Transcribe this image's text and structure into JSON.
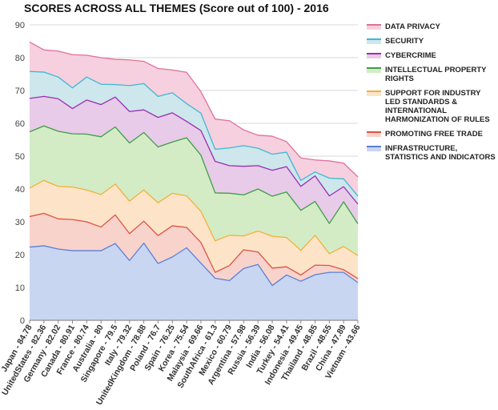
{
  "chart_data": {
    "type": "area",
    "stacked": true,
    "title": "SCORES ACROSS ALL THEMES (Score out of 100) - 2016",
    "ylim": [
      0,
      90
    ],
    "yticks": [
      0,
      10,
      20,
      30,
      40,
      50,
      60,
      70,
      80,
      90
    ],
    "grid": true,
    "legend_position": "right",
    "categories": [
      "Japan - 84.78",
      "UnitedStates - 82.36",
      "Germany - 82.02",
      "Canada - 80.91",
      "France - 80.74",
      "Australia - 80",
      "Singapore - 79.5",
      "Italy - 79.32",
      "UnitedKingdom - 78.88",
      "Poland - 76.7",
      "Spain - 76.25",
      "Korea - 75.54",
      "Malaysia - 69.66",
      "SouthAfrica - 61.3",
      "Mexico - 60.79",
      "Argentina - 57.98",
      "Russia - 56.39",
      "India - 56.08",
      "Turkey - 54.41",
      "Indonesia - 49.45",
      "Thailand - 48.85",
      "Brazil - 48.55",
      "China - 47.89",
      "Vietnam - 43.66"
    ],
    "series": [
      {
        "name": "INFRASTRUCTURE, STATISTICS AND INDICATORS",
        "color": "#5b7fd6",
        "fill": "#c9d6f2",
        "cumulative": [
          22.3,
          22.7,
          21.7,
          21.2,
          21.2,
          21.2,
          23.4,
          18.2,
          23.5,
          17.3,
          19.3,
          22.1,
          17.4,
          12.8,
          12.1,
          15.8,
          17.0,
          10.6,
          13.8,
          11.9,
          13.9,
          14.6,
          14.6,
          11.5
        ]
      },
      {
        "name": "PROMOTING FREE TRADE",
        "color": "#e0523f",
        "fill": "#f8d3cc",
        "cumulative": [
          31.6,
          32.6,
          30.9,
          30.7,
          30.0,
          28.4,
          32.1,
          26.4,
          30.2,
          25.8,
          28.8,
          28.3,
          23.7,
          14.6,
          16.7,
          21.5,
          20.8,
          15.9,
          16.3,
          13.8,
          16.8,
          16.7,
          15.4,
          12.7
        ]
      },
      {
        "name": "SUPPORT FOR INDUSTRY LED STANDARDS & INTERNATIONAL HARMONIZATION OF RULES",
        "color": "#f0b13c",
        "fill": "#fde4c8",
        "cumulative": [
          40.3,
          42.6,
          40.8,
          40.6,
          39.7,
          38.3,
          41.5,
          36.3,
          39.7,
          35.8,
          38.7,
          37.9,
          33.2,
          24.2,
          25.9,
          25.7,
          27.2,
          25.6,
          25.2,
          21.3,
          25.9,
          20.3,
          22.5,
          19.7
        ]
      },
      {
        "name": "INTELLECTUAL PROPERTY RIGHTS",
        "color": "#3e9e45",
        "fill": "#d3ecc6",
        "cumulative": [
          57.4,
          59.2,
          57.6,
          56.8,
          56.7,
          55.9,
          58.9,
          54.0,
          57.2,
          52.8,
          54.3,
          55.6,
          50.3,
          38.8,
          38.7,
          38.2,
          40.0,
          37.8,
          39.1,
          33.5,
          36.2,
          29.5,
          36.1,
          29.4
        ]
      },
      {
        "name": "CYBERCRIME",
        "color": "#9a2fb0",
        "fill": "#e7cbe8",
        "cumulative": [
          67.6,
          68.2,
          67.5,
          64.5,
          67.1,
          65.7,
          68.0,
          63.6,
          64.1,
          61.8,
          63.2,
          60.6,
          57.8,
          48.4,
          47.1,
          46.9,
          47.1,
          45.7,
          46.8,
          40.8,
          44.0,
          37.9,
          40.7,
          35.4
        ]
      },
      {
        "name": "SECURITY",
        "color": "#3fb7d4",
        "fill": "#cde7ec",
        "cumulative": [
          75.8,
          75.6,
          74.1,
          70.8,
          74.1,
          71.9,
          71.8,
          71.5,
          72.1,
          68.2,
          69.3,
          66.0,
          63.1,
          52.1,
          52.5,
          53.2,
          52.4,
          50.6,
          51.2,
          42.6,
          45.2,
          43.3,
          43.1,
          37.8
        ]
      },
      {
        "name": "DATA PRIVACY",
        "color": "#e0709a",
        "fill": "#f6d0de",
        "cumulative": [
          84.78,
          82.36,
          82.02,
          80.91,
          80.74,
          80.0,
          79.5,
          79.32,
          78.88,
          76.7,
          76.25,
          75.54,
          69.66,
          61.3,
          60.79,
          57.98,
          56.39,
          56.08,
          54.41,
          49.45,
          48.85,
          48.55,
          47.89,
          43.66
        ]
      }
    ],
    "legend_order": [
      "DATA PRIVACY",
      "SECURITY",
      "CYBERCRIME",
      "INTELLECTUAL PROPERTY RIGHTS",
      "SUPPORT FOR INDUSTRY LED STANDARDS & INTERNATIONAL HARMONIZATION OF RULES",
      "PROMOTING FREE TRADE",
      "INFRASTRUCTURE, STATISTICS AND INDICATORS"
    ]
  }
}
